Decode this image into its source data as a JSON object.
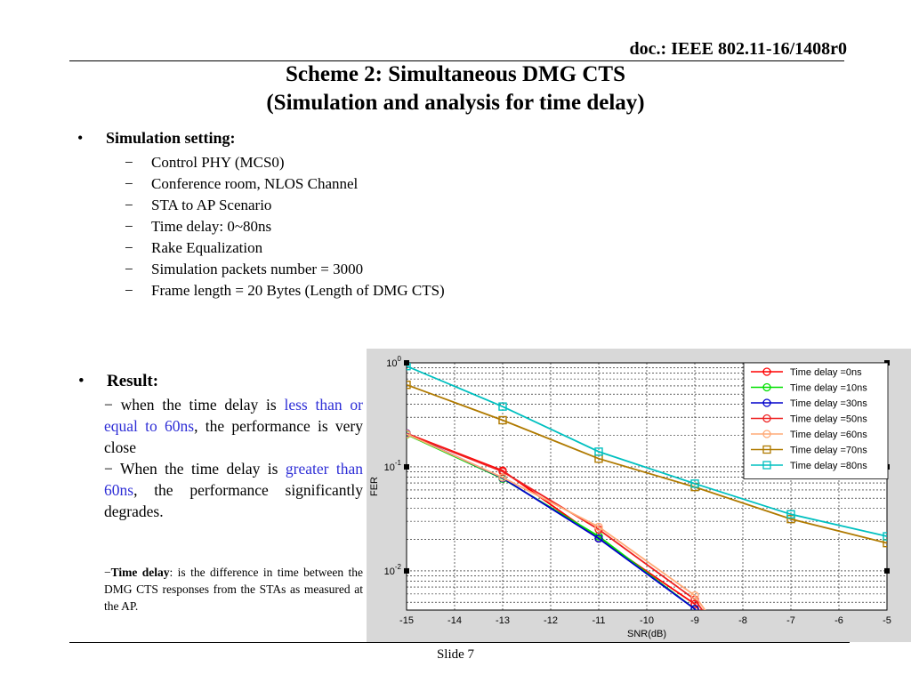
{
  "header": {
    "doc_ref": "doc.: IEEE 802.11-16/1408r0"
  },
  "title": {
    "line1": "Scheme 2: Simultaneous DMG CTS",
    "line2": "(Simulation and analysis for time delay)"
  },
  "setting": {
    "heading": "Simulation setting:",
    "items": [
      "Control PHY (MCS0)",
      "Conference room, NLOS Channel",
      "STA to AP Scenario",
      "Time delay: 0~80ns",
      "Rake Equalization",
      "Simulation packets number = 3000",
      "Frame length = 20 Bytes (Length of DMG CTS)"
    ]
  },
  "result": {
    "heading": "Result:",
    "p1_a": "when the time delay is ",
    "p1_b": "less than or equal to 60ns",
    "p1_c": ", the performance is very close",
    "p2_a": "When the time delay is ",
    "p2_b": "greater than 60ns",
    "p2_c": ", the performance significantly degrades.",
    "note_term": "Time delay",
    "note_text": ": is the difference in time between the DMG CTS responses from the STAs as measured at the AP."
  },
  "footer": {
    "slide": "Slide 7"
  },
  "chart_data": {
    "type": "line",
    "xlabel": "SNR(dB)",
    "ylabel": "FER",
    "xlim": [
      -15,
      -5
    ],
    "ylim": [
      0.0042,
      1
    ],
    "yscale": "log",
    "x_ticks": [
      "-15",
      "-14",
      "-13",
      "-12",
      "-11",
      "-10",
      "-9",
      "-8",
      "-7",
      "-6",
      "-5"
    ],
    "y_ticks": [
      {
        "base": "10",
        "exp": "0"
      },
      {
        "base": "10",
        "exp": "-1"
      },
      {
        "base": "10",
        "exp": "-2"
      }
    ],
    "grid": true,
    "legend_position": "top-right",
    "series": [
      {
        "name": "Time delay =0ns",
        "marker": "circle",
        "color": "#ff0000",
        "x": [
          -15,
          -13,
          -11,
          -9,
          -8.5
        ],
        "y": [
          0.21,
          0.092,
          0.0205,
          0.0048,
          0.0022
        ]
      },
      {
        "name": "Time delay =10ns",
        "marker": "circle",
        "color": "#00e000",
        "x": [
          -15,
          -13,
          -11,
          -9,
          -8.5
        ],
        "y": [
          0.205,
          0.077,
          0.0215,
          0.0043,
          0.0021
        ]
      },
      {
        "name": "Time delay =30ns",
        "marker": "circle",
        "color": "#0000cc",
        "x": [
          -15,
          -13,
          -11,
          -9,
          -8.5
        ],
        "y": [
          0.21,
          0.078,
          0.0205,
          0.0043,
          0.0021
        ]
      },
      {
        "name": "Time delay =50ns",
        "marker": "circle",
        "color": "#ee2020",
        "x": [
          -15,
          -13,
          -11,
          -9,
          -8.5
        ],
        "y": [
          0.208,
          0.09,
          0.025,
          0.0053,
          0.0025
        ]
      },
      {
        "name": "Time delay =60ns",
        "marker": "circle",
        "color": "#ffaa77",
        "x": [
          -15,
          -13,
          -11,
          -9,
          -8.5
        ],
        "y": [
          0.207,
          0.079,
          0.0265,
          0.0058,
          0.0027
        ]
      },
      {
        "name": "Time delay =70ns",
        "marker": "square",
        "color": "#b07a00",
        "x": [
          -15,
          -13,
          -11,
          -9,
          -7,
          -5
        ],
        "y": [
          0.615,
          0.281,
          0.12,
          0.064,
          0.0315,
          0.0185
        ]
      },
      {
        "name": "Time delay =80ns",
        "marker": "square",
        "color": "#00c0c0",
        "x": [
          -15,
          -13,
          -11,
          -9,
          -7,
          -5
        ],
        "y": [
          0.93,
          0.38,
          0.14,
          0.069,
          0.035,
          0.0215
        ]
      }
    ]
  }
}
